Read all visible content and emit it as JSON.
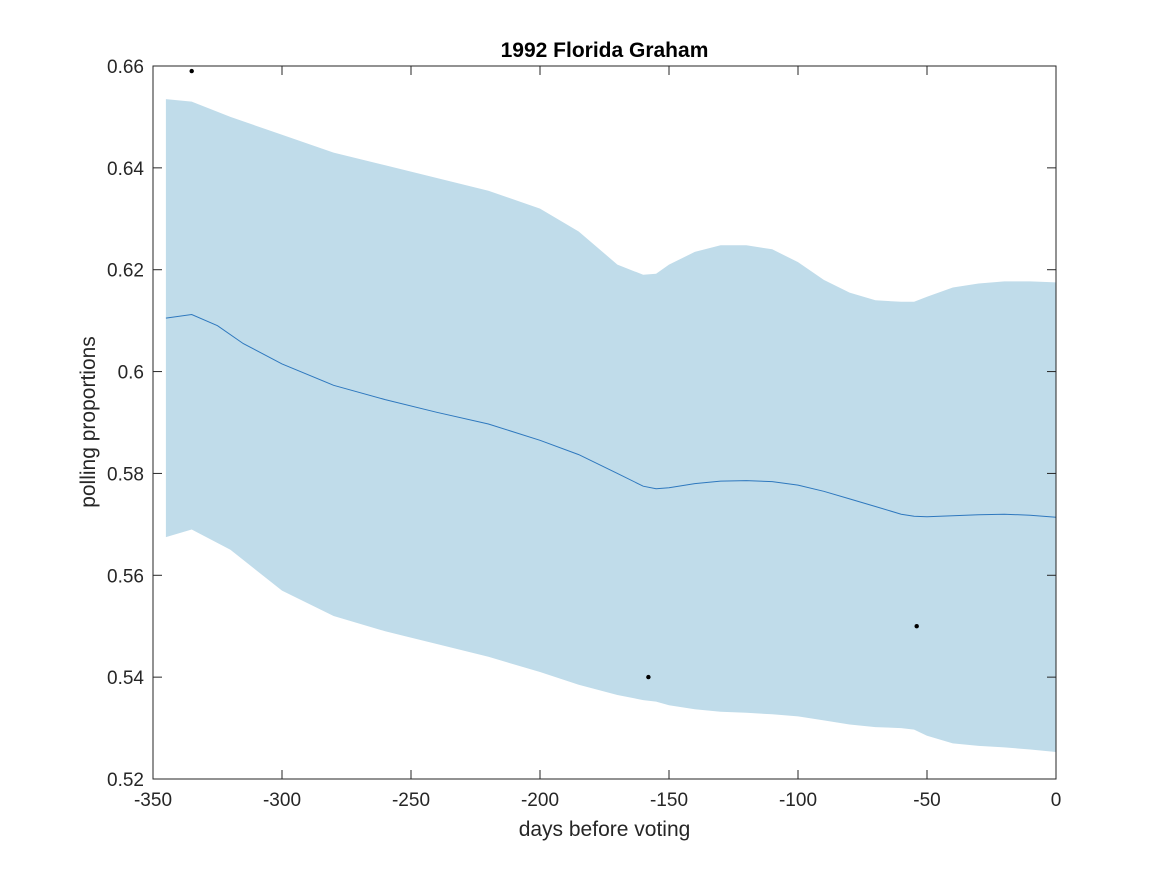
{
  "chart_data": {
    "type": "line",
    "title": "1992 Florida Graham",
    "xlabel": "days before voting",
    "ylabel": "polling proportions",
    "xlim": [
      -350,
      0
    ],
    "ylim": [
      0.52,
      0.66
    ],
    "xticks": [
      -350,
      -300,
      -250,
      -200,
      -150,
      -100,
      -50,
      0
    ],
    "xtick_labels": [
      "-350",
      "-300",
      "-250",
      "-200",
      "-150",
      "-100",
      "-50",
      "0"
    ],
    "yticks": [
      0.52,
      0.54,
      0.56,
      0.58,
      0.6,
      0.62,
      0.64,
      0.66
    ],
    "ytick_labels": [
      "0.52",
      "0.54",
      "0.56",
      "0.58",
      "0.6",
      "0.62",
      "0.64",
      "0.66"
    ],
    "grid": false,
    "colors": {
      "band": "#c0dcea",
      "line": "#2e78be",
      "points": "#000000",
      "axes": "#262626"
    },
    "series": [
      {
        "type": "band",
        "x": [
          -345,
          -335,
          -320,
          -300,
          -280,
          -260,
          -240,
          -220,
          -200,
          -185,
          -170,
          -160,
          -155,
          -150,
          -140,
          -130,
          -120,
          -110,
          -100,
          -90,
          -80,
          -70,
          -60,
          -55,
          -50,
          -40,
          -30,
          -20,
          -10,
          0
        ],
        "upper": [
          0.6535,
          0.653,
          0.65,
          0.6465,
          0.643,
          0.6405,
          0.638,
          0.6355,
          0.632,
          0.6275,
          0.621,
          0.619,
          0.6192,
          0.621,
          0.6235,
          0.6248,
          0.6248,
          0.624,
          0.6215,
          0.618,
          0.6155,
          0.614,
          0.6137,
          0.6137,
          0.6147,
          0.6165,
          0.6173,
          0.6177,
          0.6177,
          0.6175
        ],
        "lower": [
          0.5675,
          0.569,
          0.565,
          0.557,
          0.552,
          0.549,
          0.5465,
          0.544,
          0.541,
          0.5385,
          0.5365,
          0.5355,
          0.5352,
          0.5345,
          0.5337,
          0.5332,
          0.533,
          0.5327,
          0.5323,
          0.5315,
          0.5307,
          0.5302,
          0.53,
          0.5297,
          0.5285,
          0.527,
          0.5265,
          0.5262,
          0.5258,
          0.5253
        ]
      },
      {
        "type": "line",
        "x": [
          -345,
          -335,
          -325,
          -315,
          -300,
          -280,
          -260,
          -240,
          -220,
          -200,
          -185,
          -170,
          -160,
          -155,
          -150,
          -140,
          -130,
          -120,
          -110,
          -100,
          -90,
          -80,
          -70,
          -60,
          -55,
          -50,
          -40,
          -30,
          -20,
          -10,
          0
        ],
        "y": [
          0.6105,
          0.6112,
          0.609,
          0.6055,
          0.6015,
          0.5973,
          0.5945,
          0.592,
          0.5897,
          0.5865,
          0.5837,
          0.58,
          0.5775,
          0.577,
          0.5772,
          0.578,
          0.5785,
          0.5786,
          0.5784,
          0.5777,
          0.5765,
          0.575,
          0.5735,
          0.572,
          0.5716,
          0.5715,
          0.5717,
          0.5719,
          0.572,
          0.5718,
          0.5714
        ]
      },
      {
        "type": "scatter",
        "x": [
          -335,
          -158,
          -54
        ],
        "y": [
          0.659,
          0.54,
          0.55
        ]
      }
    ]
  }
}
